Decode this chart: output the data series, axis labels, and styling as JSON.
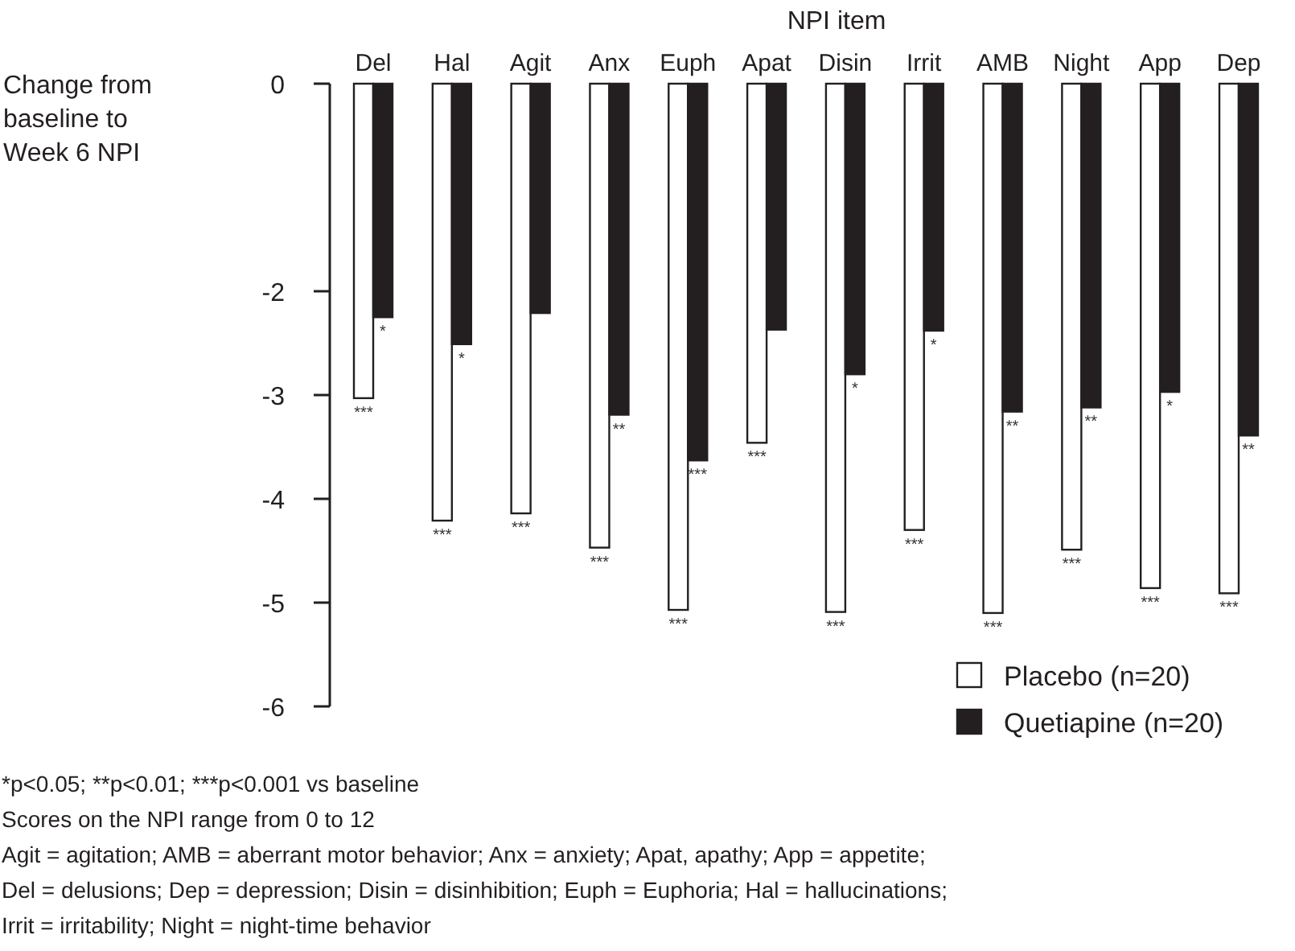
{
  "chart_data": {
    "type": "bar",
    "xlabel": "NPI item",
    "ylabel": "Change from baseline to Week 6 NPI",
    "categories": [
      "Del",
      "Hal",
      "Agit",
      "Anx",
      "Euph",
      "Apat",
      "Disin",
      "Irrit",
      "AMB",
      "Night",
      "App",
      "Dep"
    ],
    "ylim": [
      -6,
      0
    ],
    "yticks": [
      0,
      -2,
      -3,
      -4,
      -5,
      -6
    ],
    "series": [
      {
        "name": "Placebo (n=20)",
        "color": "#ffffff",
        "values": [
          -3.03,
          -4.21,
          -4.14,
          -4.47,
          -5.07,
          -3.46,
          -5.09,
          -4.3,
          -5.1,
          -4.49,
          -4.86,
          -4.91
        ],
        "value_labels": [
          "***",
          "***",
          "***",
          "***",
          "***",
          "***",
          "***",
          "***",
          "***",
          "***",
          "***",
          "***"
        ]
      },
      {
        "name": "Quetiapine (n=20)",
        "color": "#231f20",
        "values": [
          -2.25,
          -2.51,
          -2.21,
          -3.19,
          -3.63,
          -2.37,
          -2.8,
          -2.38,
          -3.16,
          -3.12,
          -2.97,
          -3.39
        ],
        "value_labels": [
          "*",
          "*",
          null,
          "**",
          "***",
          null,
          "*",
          "*",
          "**",
          "**",
          "*",
          "**"
        ]
      }
    ],
    "legend": "bottom right",
    "grid": false,
    "annotations": [
      "*p<0.05; **p<0.01; ***p<0.001 vs baseline",
      "Scores on the NPI range from 0 to 12",
      "Agit = agitation; AMB = aberrant motor behavior; Anx = anxiety; Apat, apathy; App = appetite;",
      "Del = delusions; Dep = depression; Disin = disinhibition; Euph = Euphoria; Hal = hallucinations;",
      "Irrit = irritability; Night = night-time behavior"
    ]
  }
}
